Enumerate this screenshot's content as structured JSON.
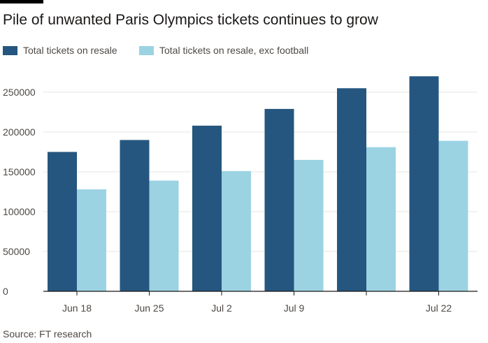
{
  "title": "Pile of unwanted Paris Olympics tickets continues to grow",
  "source": "Source: FT research",
  "colors": {
    "series1": "#25567f",
    "series2": "#9bd3e3",
    "grid": "#e6e4e2",
    "axis": "#1a1817",
    "text": "#4d4845"
  },
  "chart_data": {
    "type": "bar",
    "title": "Pile of unwanted Paris Olympics tickets continues to grow",
    "categories": [
      "Jun 18",
      "Jun 25",
      "Jul 2",
      "Jul 9",
      "",
      "Jul 22"
    ],
    "series": [
      {
        "name": "Total tickets on resale",
        "values": [
          175000,
          190000,
          208000,
          229000,
          255000,
          270000
        ]
      },
      {
        "name": "Total tickets on resale, exc football",
        "values": [
          128000,
          139000,
          151000,
          165000,
          181000,
          189000
        ]
      }
    ],
    "y_ticks": [
      "0",
      "50000",
      "100000",
      "150000",
      "200000",
      "250000"
    ],
    "y_tick_values": [
      0,
      50000,
      100000,
      150000,
      200000,
      250000
    ],
    "ylim": [
      0,
      275000
    ],
    "xlabel": "",
    "ylabel": "",
    "grid": true,
    "legend": "top-left"
  }
}
